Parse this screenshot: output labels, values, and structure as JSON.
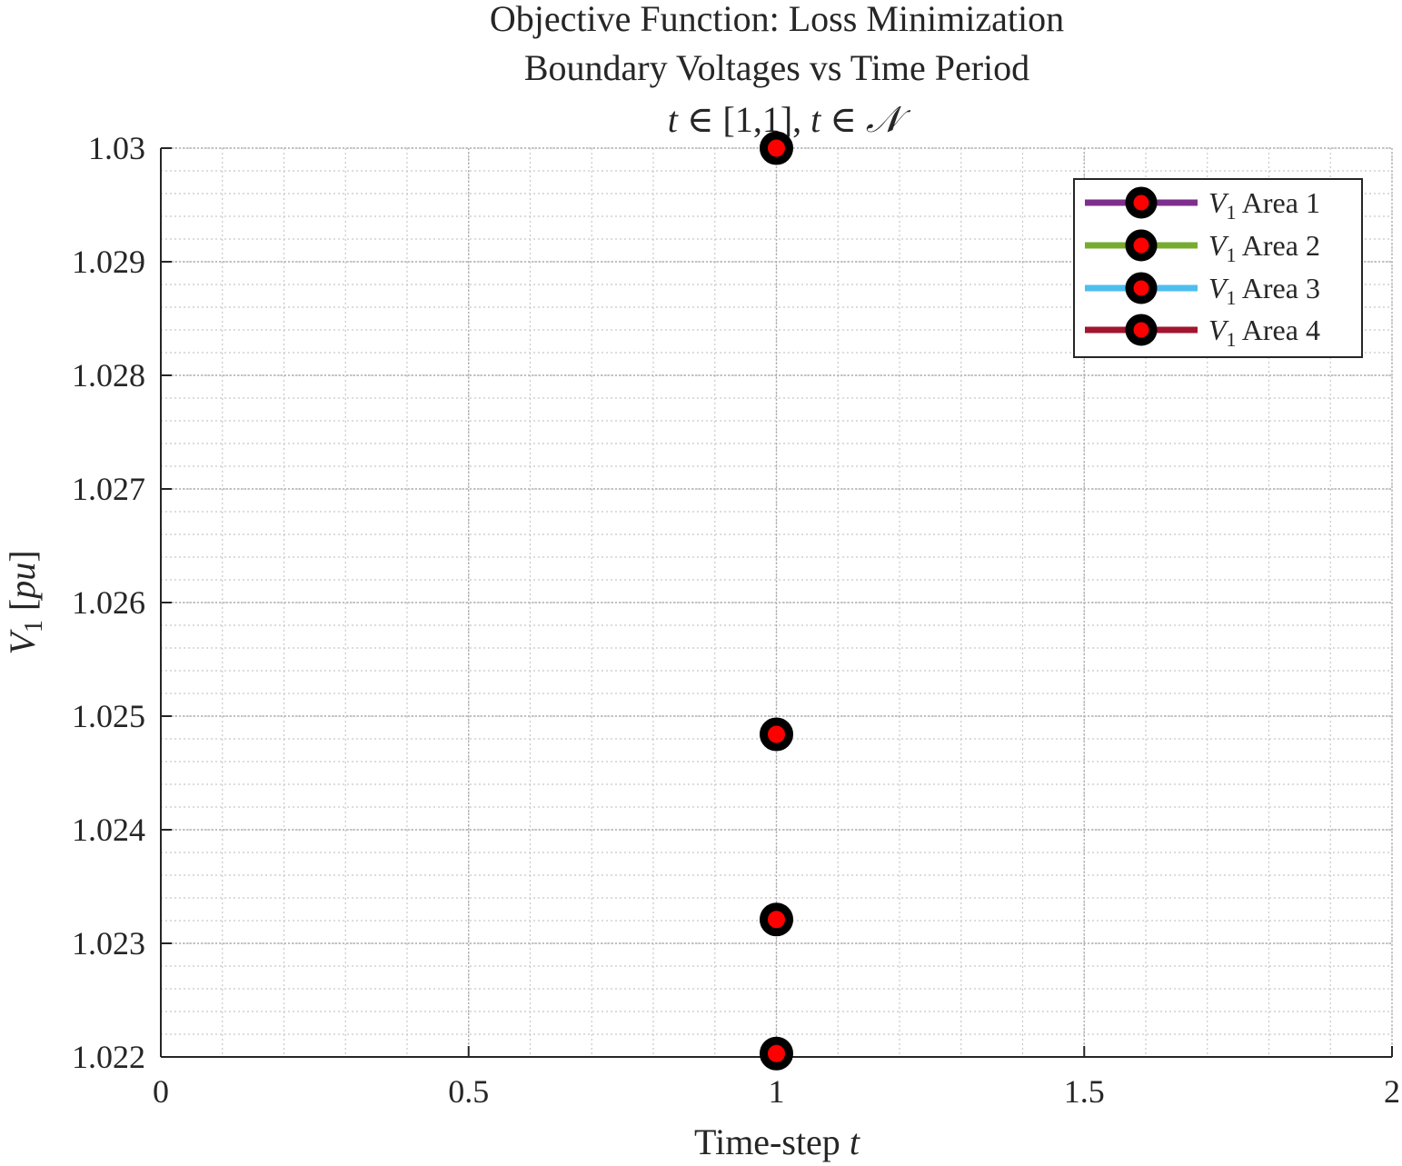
{
  "chart_data": {
    "type": "scatter",
    "title_lines": [
      "Objective Function: Loss Minimization",
      "Boundary Voltages vs Time Period",
      "t ∈ [1,1], t ∈ 𝒩"
    ],
    "xlabel": "Time-step t",
    "ylabel": "V1 [pu]",
    "xlim": [
      0,
      2
    ],
    "ylim": [
      1.022,
      1.03
    ],
    "x_ticks": [
      0,
      0.5,
      1,
      1.5,
      2
    ],
    "x_tick_labels": [
      "0",
      "0.5",
      "1",
      "1.5",
      "2"
    ],
    "y_ticks": [
      1.022,
      1.023,
      1.024,
      1.025,
      1.026,
      1.027,
      1.028,
      1.029,
      1.03
    ],
    "y_tick_labels": [
      "1.022",
      "1.023",
      "1.024",
      "1.025",
      "1.026",
      "1.027",
      "1.028",
      "1.029",
      "1.03"
    ],
    "grid": true,
    "minor_grid": true,
    "legend_position": "top-right",
    "series": [
      {
        "name": "V1 Area 1",
        "color": "#7E2F8E",
        "x": [
          1
        ],
        "y": [
          1.03
        ]
      },
      {
        "name": "V1 Area 2",
        "color": "#77AC30",
        "x": [
          1
        ],
        "y": [
          1.02484
        ]
      },
      {
        "name": "V1 Area 3",
        "color": "#4DBEEE",
        "x": [
          1
        ],
        "y": [
          1.02321
        ]
      },
      {
        "name": "V1 Area 4",
        "color": "#A2142F",
        "x": [
          1
        ],
        "y": [
          1.02203
        ]
      }
    ],
    "marker": {
      "edge_color": "#000000",
      "face_color": "#FF0000"
    }
  },
  "labels": {
    "title_line1": "Objective Function: Loss Minimization",
    "title_line2": "Boundary Voltages vs Time Period",
    "xlabel_main": "Time-step ",
    "xlabel_var": "t",
    "legend": [
      {
        "sym": "V",
        "sub": "1",
        "text": "Area 1"
      },
      {
        "sym": "V",
        "sub": "1",
        "text": "Area 2"
      },
      {
        "sym": "V",
        "sub": "1",
        "text": "Area 3"
      },
      {
        "sym": "V",
        "sub": "1",
        "text": "Area 4"
      }
    ]
  }
}
